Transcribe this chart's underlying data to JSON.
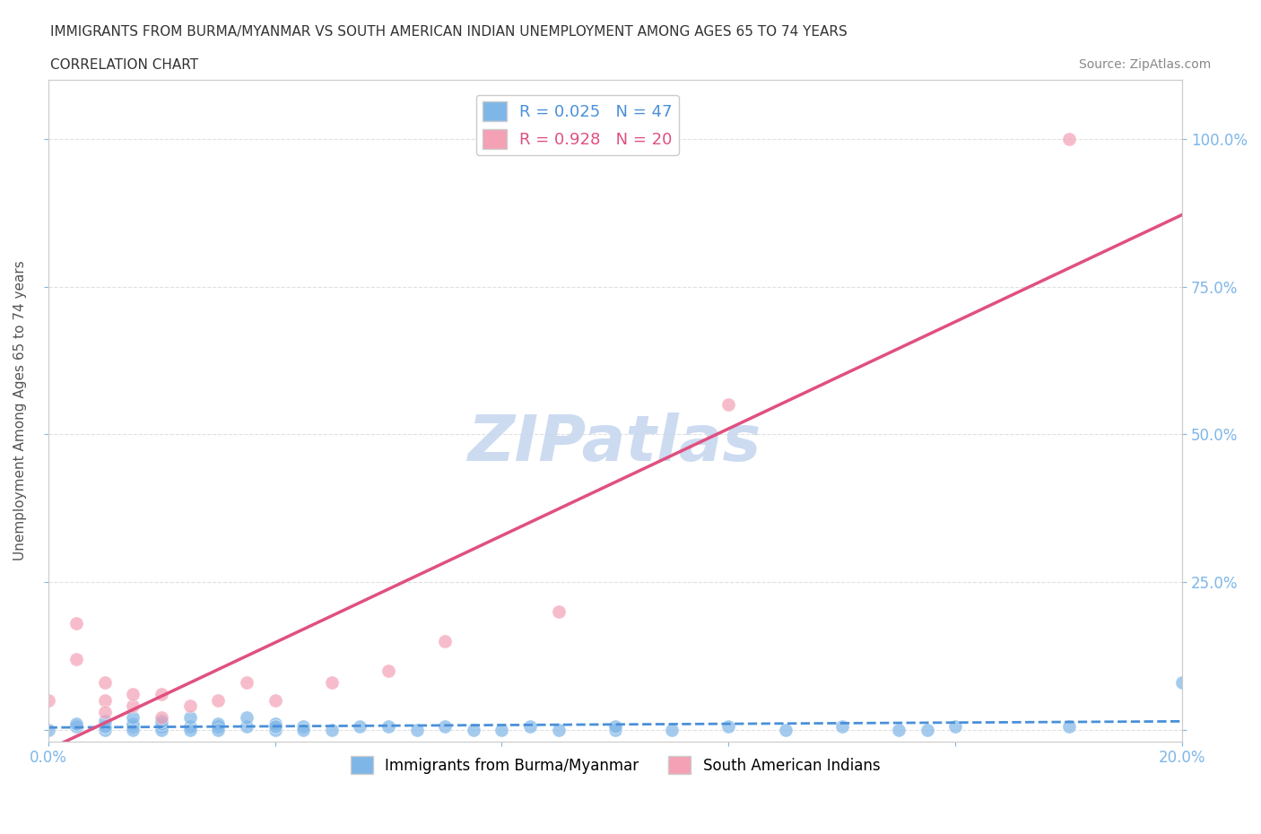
{
  "title_line1": "IMMIGRANTS FROM BURMA/MYANMAR VS SOUTH AMERICAN INDIAN UNEMPLOYMENT AMONG AGES 65 TO 74 YEARS",
  "title_line2": "CORRELATION CHART",
  "source_text": "Source: ZipAtlas.com",
  "ylabel": "Unemployment Among Ages 65 to 74 years",
  "xlim": [
    0.0,
    0.2
  ],
  "ylim": [
    -0.02,
    1.1
  ],
  "xticks": [
    0.0,
    0.04,
    0.08,
    0.12,
    0.16,
    0.2
  ],
  "xticklabels": [
    "0.0%",
    "",
    "",
    "",
    "",
    "20.0%"
  ],
  "yticks": [
    0.0,
    0.25,
    0.5,
    0.75,
    1.0
  ],
  "yticklabels": [
    "",
    "25.0%",
    "50.0%",
    "75.0%",
    "100.0%"
  ],
  "blue_color": "#7eb6e8",
  "pink_color": "#f4a0b5",
  "blue_line_color": "#4a90d9",
  "pink_line_color": "#e05080",
  "blue_R": 0.025,
  "blue_N": 47,
  "pink_R": 0.928,
  "pink_N": 20,
  "watermark": "ZIPatlas",
  "watermark_color": "#c8d8f0",
  "blue_scatter_x": [
    0.0,
    0.005,
    0.005,
    0.01,
    0.01,
    0.01,
    0.015,
    0.015,
    0.015,
    0.015,
    0.02,
    0.02,
    0.02,
    0.02,
    0.025,
    0.025,
    0.025,
    0.03,
    0.03,
    0.03,
    0.035,
    0.035,
    0.04,
    0.04,
    0.04,
    0.045,
    0.045,
    0.05,
    0.055,
    0.06,
    0.065,
    0.07,
    0.075,
    0.08,
    0.085,
    0.09,
    0.1,
    0.1,
    0.11,
    0.12,
    0.13,
    0.14,
    0.15,
    0.155,
    0.16,
    0.18,
    0.2
  ],
  "blue_scatter_y": [
    0.0,
    0.005,
    0.01,
    0.0,
    0.005,
    0.015,
    0.005,
    0.01,
    0.0,
    0.02,
    0.005,
    0.0,
    0.01,
    0.015,
    0.005,
    0.0,
    0.02,
    0.005,
    0.01,
    0.0,
    0.005,
    0.02,
    0.0,
    0.01,
    0.005,
    0.005,
    0.0,
    0.0,
    0.005,
    0.005,
    0.0,
    0.005,
    0.0,
    0.0,
    0.005,
    0.0,
    0.0,
    0.005,
    0.0,
    0.005,
    0.0,
    0.005,
    0.0,
    0.0,
    0.005,
    0.005,
    0.08
  ],
  "pink_scatter_x": [
    0.0,
    0.005,
    0.005,
    0.01,
    0.01,
    0.01,
    0.015,
    0.015,
    0.02,
    0.02,
    0.025,
    0.03,
    0.035,
    0.04,
    0.05,
    0.06,
    0.07,
    0.09,
    0.12,
    0.18
  ],
  "pink_scatter_y": [
    0.05,
    0.12,
    0.18,
    0.05,
    0.08,
    0.03,
    0.04,
    0.06,
    0.02,
    0.06,
    0.04,
    0.05,
    0.08,
    0.05,
    0.08,
    0.1,
    0.15,
    0.2,
    0.55,
    1.0
  ],
  "grid_color": "#e0e0e0",
  "bg_color": "#ffffff",
  "axis_color": "#cccccc",
  "tick_color": "#7eb6e8"
}
